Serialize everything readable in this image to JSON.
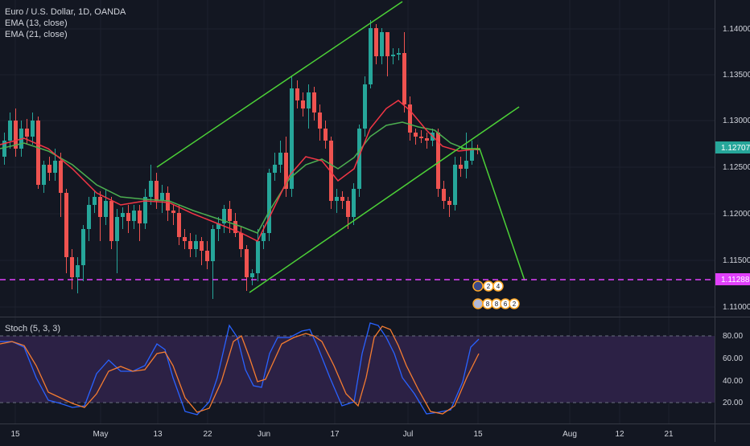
{
  "chart": {
    "symbol_line": "Euro / U.S. Dollar, 1D, OANDA",
    "indicators": [
      "EMA (13, close)",
      "EMA (21, close)"
    ],
    "price_ticks": [
      "1.14000",
      "1.13500",
      "1.13000",
      "1.12500",
      "1.12000",
      "1.11500",
      "1.11000"
    ],
    "current_price": "1.12707",
    "target_price": "1.11288",
    "colors": {
      "background": "#131722",
      "up": "#26a69a",
      "down": "#ef5350",
      "ema13": "#f23645",
      "ema21": "#4caf50",
      "trendline": "#4cd137",
      "target_line": "#e040fb",
      "stoch_k": "#2962ff",
      "stoch_d": "#f57c30",
      "stoch_band": "#3d2a5c"
    },
    "event_badges": [
      {
        "icon": "globe-flag-icon",
        "counts": [
          "2",
          "4"
        ]
      },
      {
        "icon": "us-flag-icon",
        "counts": [
          "8",
          "8",
          "6",
          "2"
        ]
      }
    ]
  },
  "stoch": {
    "label": "Stoch (5, 3, 3)",
    "ticks": [
      "80.00",
      "60.00",
      "40.00",
      "20.00"
    ]
  },
  "time_axis": [
    "15",
    "May",
    "13",
    "22",
    "Jun",
    "17",
    "Jul",
    "15",
    "Aug",
    "12",
    "21"
  ]
}
